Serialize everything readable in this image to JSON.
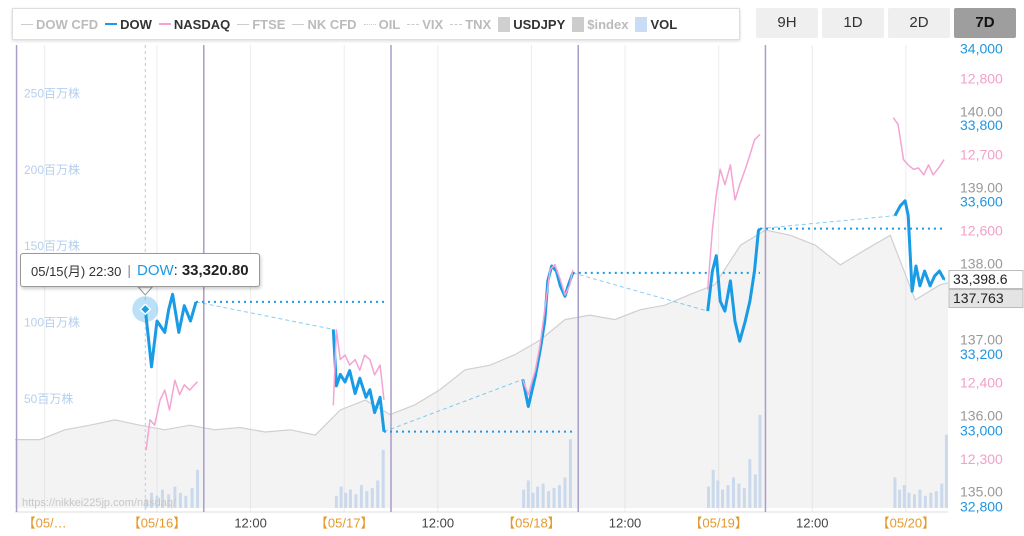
{
  "chart_data": {
    "type": "line",
    "xlim": [
      5.8,
      125.4
    ],
    "xticks": [
      {
        "value": 9.6,
        "label": "【05/…"
      },
      {
        "value": 24,
        "label": "【05/16】"
      },
      {
        "value": 36,
        "label": "12:00"
      },
      {
        "value": 48,
        "label": "【05/17】"
      },
      {
        "value": 60,
        "label": "12:00"
      },
      {
        "value": 72,
        "label": "【05/18】"
      },
      {
        "value": 84,
        "label": "12:00"
      },
      {
        "value": 96,
        "label": "【05/19】"
      },
      {
        "value": 108,
        "label": "12:00"
      },
      {
        "value": 120,
        "label": "【05/20】"
      }
    ],
    "session_lines": [
      6,
      30,
      54,
      78,
      102
    ],
    "ylim": [
      32800,
      34000
    ],
    "yticks": [
      {
        "value": 34000,
        "label": "34,000"
      },
      {
        "value": 33800,
        "label": "33,800"
      },
      {
        "value": 33600,
        "label": "33,600"
      },
      {
        "value": 33200,
        "label": "33,200"
      },
      {
        "value": 33000,
        "label": "33,000"
      },
      {
        "value": 32800,
        "label": "32,800"
      }
    ],
    "y2lim": [
      12237,
      12839
    ],
    "y2ticks": [
      {
        "value": 12800,
        "label": "12,800"
      },
      {
        "value": 12700,
        "label": "12,700"
      },
      {
        "value": 12600,
        "label": "12,600"
      },
      {
        "value": 12400,
        "label": "12,400"
      },
      {
        "value": 12300,
        "label": "12,300"
      }
    ],
    "y3lim": [
      134.8,
      140.83
    ],
    "y3ticks": [
      {
        "value": 140,
        "label": "140.00"
      },
      {
        "value": 139,
        "label": "139.00"
      },
      {
        "value": 138,
        "label": "138.00"
      },
      {
        "value": 137,
        "label": "137.00"
      },
      {
        "value": 136,
        "label": "136.00"
      },
      {
        "value": 135,
        "label": "135.00"
      }
    ],
    "y4lim": [
      0,
      300
    ],
    "y4ticks": [
      {
        "value": 250,
        "label": "250百万株"
      },
      {
        "value": 200,
        "label": "200百万株"
      },
      {
        "value": 150,
        "label": "150百万株"
      },
      {
        "value": 100,
        "label": "100百万株"
      },
      {
        "value": 50,
        "label": "50百万株"
      }
    ],
    "axis_colors": {
      "y": "#2196e0",
      "y2": "#f2a0c8",
      "y3": "#999999",
      "y4": "#b5cfee"
    },
    "series": [
      {
        "name": "DOW CFD",
        "color": "#cccccc",
        "style": "line",
        "visible": false,
        "x": [],
        "values": []
      },
      {
        "name": "DOW",
        "color": "#1a9be6",
        "style": "line",
        "visible": true,
        "axis": "y",
        "guides": true,
        "last_label": "33,398.6",
        "x": [
          22.5,
          23.3,
          24.0,
          25.0,
          25.5,
          26.0,
          26.8,
          27.5,
          28.3,
          29.0,
          null,
          46.6,
          47.0,
          47.5,
          48.1,
          48.7,
          49.4,
          50.0,
          50.8,
          51.3,
          51.9,
          52.6,
          53.1,
          null,
          70.9,
          71.6,
          72.5,
          73.1,
          73.7,
          74.1,
          74.6,
          75.2,
          75.7,
          76.3,
          76.7,
          77.3,
          null,
          94.6,
          95.2,
          95.7,
          96.2,
          96.8,
          97.5,
          98.1,
          98.7,
          99.4,
          100.0,
          100.6,
          101.1,
          101.3,
          null,
          118.6,
          119.3,
          119.9,
          120.3,
          120.8,
          121.3,
          121.8,
          122.4,
          123.1,
          123.7,
          124.3,
          124.9
        ],
        "values": [
          33320.8,
          33170,
          33290,
          33260,
          33320,
          33360,
          33260,
          33330,
          33290,
          33340,
          null,
          33268,
          33120,
          33150,
          33130,
          33160,
          33100,
          33140,
          33090,
          33110,
          33050,
          33090,
          33000,
          null,
          33137,
          33066,
          33145,
          33211,
          33289,
          33395,
          33434,
          33421,
          33382,
          33355,
          33382,
          33416,
          null,
          33316,
          33421,
          33461,
          33342,
          33316,
          33395,
          33289,
          33237,
          33289,
          33342,
          33421,
          33526,
          33532,
          null,
          33566,
          33592,
          33605,
          33566,
          33368,
          33434,
          33382,
          33421,
          33382,
          33408,
          33421,
          33398.6
        ]
      },
      {
        "name": "NASDAQ",
        "color": "#f4a3d3",
        "style": "line",
        "visible": true,
        "axis": "y2",
        "x": [
          22.6,
          23.1,
          23.7,
          24.4,
          25.0,
          25.6,
          26.3,
          26.9,
          27.5,
          28.2,
          28.8,
          29.2,
          null,
          46.6,
          47.0,
          47.5,
          48.1,
          48.7,
          49.4,
          50.0,
          50.6,
          51.3,
          51.9,
          52.6,
          53.1,
          null,
          70.9,
          71.6,
          72.5,
          73.1,
          73.7,
          74.4,
          75.0,
          75.7,
          76.3,
          76.9,
          77.3,
          null,
          94.6,
          95.2,
          95.7,
          96.2,
          96.8,
          97.5,
          98.1,
          98.7,
          99.4,
          100.0,
          100.6,
          101.3,
          null,
          118.4,
          119.0,
          119.7,
          120.3,
          121.0,
          121.6,
          122.3,
          122.9,
          123.5,
          124.2,
          124.9
        ],
        "values": [
          12313,
          12353,
          12346,
          12379,
          12392,
          12366,
          12405,
          12386,
          12399,
          12392,
          12399,
          12403,
          null,
          12372,
          12471,
          12432,
          12438,
          12425,
          12432,
          12418,
          12438,
          12432,
          12412,
          12425,
          12379,
          null,
          12405,
          12386,
          12418,
          12451,
          12497,
          12550,
          12557,
          12537,
          12517,
          12530,
          12550,
          null,
          12524,
          12603,
          12649,
          12682,
          12662,
          12688,
          12642,
          12662,
          12682,
          12701,
          12721,
          12728,
          null,
          12750,
          12741,
          12695,
          12688,
          12682,
          12684,
          12675,
          12688,
          12675,
          12684,
          12695
        ]
      },
      {
        "name": "FTSE",
        "color": "#cccccc",
        "style": "line",
        "visible": false,
        "x": [],
        "values": []
      },
      {
        "name": "NK CFD",
        "color": "#cccccc",
        "style": "line",
        "visible": false,
        "x": [],
        "values": []
      },
      {
        "name": "OIL",
        "color": "#cccccc",
        "style": "dotted",
        "visible": false,
        "x": [],
        "values": []
      },
      {
        "name": "VIX",
        "color": "#cccccc",
        "style": "dashed",
        "visible": false,
        "x": [],
        "values": []
      },
      {
        "name": "TNX",
        "color": "#cccccc",
        "style": "dashed",
        "visible": false,
        "x": [],
        "values": []
      },
      {
        "name": "USDJPY",
        "color": "#d0d0d0",
        "style": "area",
        "visible": true,
        "axis": "y3",
        "last_label": "137.763",
        "x": [
          5.8,
          9.0,
          12.2,
          15.4,
          18.6,
          21.8,
          25.0,
          28.2,
          31.4,
          34.6,
          37.9,
          41.1,
          44.3,
          47.5,
          50.7,
          53.9,
          57.1,
          60.3,
          63.5,
          66.7,
          69.9,
          73.1,
          76.3,
          79.5,
          82.7,
          85.9,
          89.1,
          92.3,
          95.5,
          98.8,
          102.0,
          105.2,
          108.4,
          111.6,
          114.8,
          118.0,
          121.2,
          124.4,
          125.4
        ],
        "values": [
          135.7,
          135.7,
          135.83,
          135.89,
          135.96,
          135.89,
          135.83,
          135.89,
          135.83,
          135.86,
          135.8,
          135.83,
          135.76,
          136.09,
          136.22,
          136.03,
          136.16,
          136.36,
          136.62,
          136.68,
          136.82,
          137.01,
          137.28,
          137.34,
          137.28,
          137.41,
          137.47,
          137.61,
          137.74,
          138.26,
          138.46,
          138.39,
          138.26,
          138.0,
          138.2,
          138.39,
          137.54,
          137.74,
          137.763
        ]
      },
      {
        "name": "$index",
        "color": "#cccccc",
        "style": "box",
        "visible": false,
        "x": [],
        "values": []
      },
      {
        "name": "VOL",
        "color": "#c9dcf5",
        "style": "bars",
        "visible": true,
        "axis": "y4",
        "x": [
          22.6,
          23.3,
          24.0,
          24.7,
          25.5,
          26.3,
          27.0,
          27.7,
          28.5,
          29.2,
          47.0,
          47.6,
          48.2,
          48.8,
          49.5,
          50.2,
          50.9,
          51.6,
          52.3,
          53.0,
          71.0,
          71.6,
          72.2,
          72.8,
          73.5,
          74.2,
          74.9,
          75.6,
          76.3,
          77.0,
          94.7,
          95.3,
          95.9,
          96.5,
          97.2,
          97.9,
          98.6,
          99.3,
          100.0,
          100.7,
          101.3,
          118.6,
          119.2,
          119.8,
          120.4,
          121.1,
          121.8,
          122.5,
          123.2,
          123.9,
          124.6,
          125.2
        ],
        "values": [
          6,
          10,
          8,
          12,
          9,
          14,
          10,
          8,
          13,
          25,
          8,
          14,
          10,
          12,
          9,
          15,
          11,
          13,
          18,
          38,
          12,
          18,
          10,
          14,
          16,
          11,
          13,
          15,
          20,
          45,
          14,
          25,
          18,
          12,
          15,
          20,
          16,
          13,
          32,
          22,
          61,
          20,
          12,
          15,
          10,
          9,
          12,
          8,
          10,
          11,
          16,
          48
        ]
      }
    ]
  },
  "range_buttons": {
    "labels": [
      "9H",
      "1D",
      "2D",
      "7D"
    ],
    "active": 3
  },
  "tooltip": {
    "time": "05/15(月) 22:30",
    "divider": "|",
    "name_suffix": ":",
    "value_label": "33,320.80"
  },
  "watermark": "https://nikkei225jp.com/nasdaq/"
}
